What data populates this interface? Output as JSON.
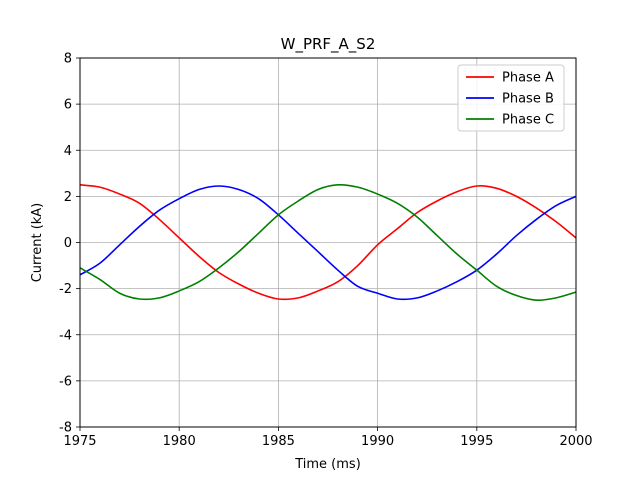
{
  "chart_data": {
    "type": "line",
    "title": "W_PRF_A_S2",
    "xlabel": "Time (ms)",
    "ylabel": "Current (kA)",
    "xlim": [
      1975,
      2000
    ],
    "ylim": [
      -8,
      8
    ],
    "xticks": [
      1975,
      1980,
      1985,
      1990,
      1995,
      2000
    ],
    "yticks": [
      -8,
      -6,
      -4,
      -2,
      0,
      2,
      4,
      6,
      8
    ],
    "grid": true,
    "legend_position": "top-right",
    "series": [
      {
        "name": "Phase A",
        "color": "#ff0000",
        "x": [
          1975,
          1976,
          1977,
          1978,
          1979,
          1980,
          1981,
          1982,
          1983,
          1984,
          1985,
          1986,
          1987,
          1988,
          1989,
          1990,
          1991,
          1992,
          1993,
          1994,
          1995,
          1996,
          1997,
          1998,
          1999,
          2000
        ],
        "y": [
          2.5,
          2.4,
          2.1,
          1.7,
          1.0,
          0.2,
          -0.6,
          -1.3,
          -1.8,
          -2.2,
          -2.45,
          -2.4,
          -2.1,
          -1.7,
          -1.0,
          -0.1,
          0.6,
          1.3,
          1.8,
          2.2,
          2.45,
          2.35,
          2.0,
          1.5,
          0.9,
          0.2
        ]
      },
      {
        "name": "Phase B",
        "color": "#0000ff",
        "x": [
          1975,
          1976,
          1977,
          1978,
          1979,
          1980,
          1981,
          1982,
          1983,
          1984,
          1985,
          1986,
          1987,
          1988,
          1989,
          1990,
          1991,
          1992,
          1993,
          1994,
          1995,
          1996,
          1997,
          1998,
          1999,
          2000
        ],
        "y": [
          -1.4,
          -0.9,
          -0.1,
          0.7,
          1.4,
          1.9,
          2.3,
          2.45,
          2.3,
          1.9,
          1.2,
          0.4,
          -0.4,
          -1.2,
          -1.9,
          -2.2,
          -2.45,
          -2.4,
          -2.1,
          -1.7,
          -1.2,
          -0.5,
          0.3,
          1.0,
          1.6,
          2.0
        ]
      },
      {
        "name": "Phase C",
        "color": "#008000",
        "x": [
          1975,
          1976,
          1977,
          1978,
          1979,
          1980,
          1981,
          1982,
          1983,
          1984,
          1985,
          1986,
          1987,
          1988,
          1989,
          1990,
          1991,
          1992,
          1993,
          1994,
          1995,
          1996,
          1997,
          1998,
          1999,
          2000
        ],
        "y": [
          -1.1,
          -1.6,
          -2.2,
          -2.45,
          -2.4,
          -2.1,
          -1.7,
          -1.1,
          -0.4,
          0.4,
          1.2,
          1.8,
          2.3,
          2.5,
          2.4,
          2.1,
          1.7,
          1.1,
          0.3,
          -0.5,
          -1.2,
          -1.9,
          -2.3,
          -2.5,
          -2.4,
          -2.15
        ]
      }
    ]
  }
}
